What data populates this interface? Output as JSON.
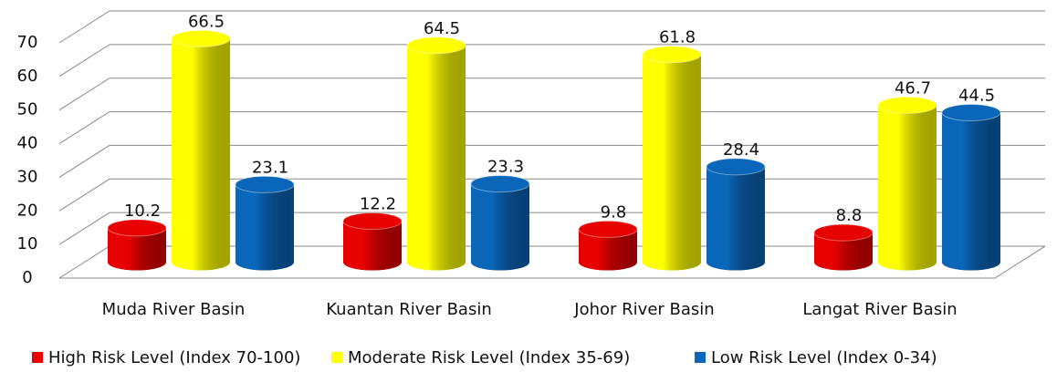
{
  "chart_data": {
    "type": "bar3d",
    "categories": [
      "Muda River Basin",
      "Kuantan River Basin",
      "Johor River Basin",
      "Langat River Basin"
    ],
    "series": [
      {
        "name": "High Risk Level (Index 70-100)",
        "color": "#e60000",
        "values": [
          10.2,
          12.2,
          9.8,
          8.8
        ]
      },
      {
        "name": "Moderate Risk Level (Index 35-69)",
        "color": "#ffff00",
        "values": [
          66.5,
          64.5,
          61.8,
          46.7
        ]
      },
      {
        "name": "Low Risk Level (Index 0-34)",
        "color": "#0a66b8",
        "values": [
          23.1,
          23.3,
          28.4,
          44.5
        ]
      }
    ],
    "ylim": [
      0,
      70
    ],
    "yticks": [
      0,
      10,
      20,
      30,
      40,
      50,
      60,
      70
    ],
    "grid": true,
    "legend": "bottom"
  }
}
